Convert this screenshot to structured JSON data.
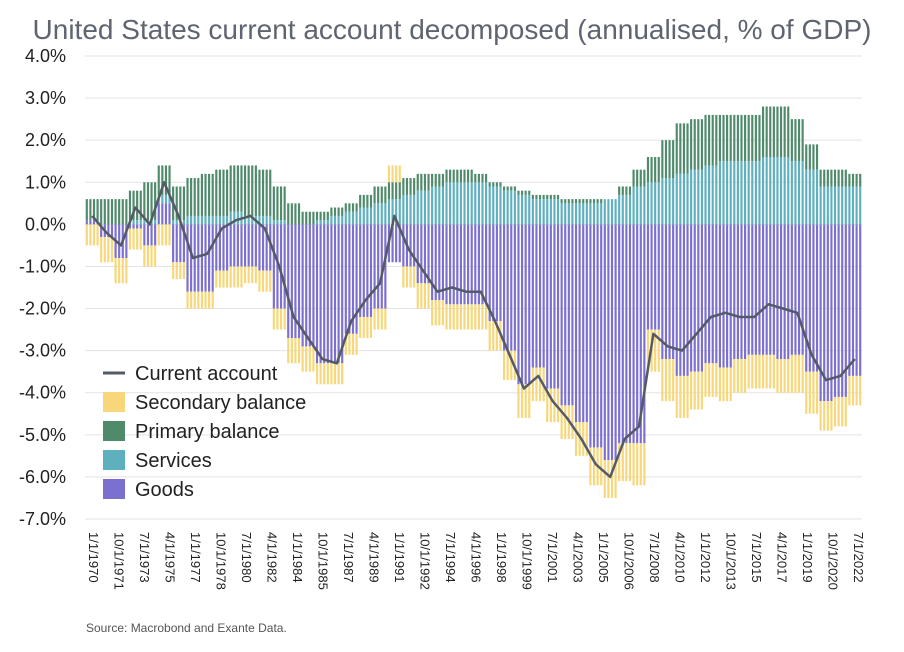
{
  "chart_data": {
    "type": "bar",
    "title": "United States current account decomposed (annualised, % of GDP)",
    "ylim": [
      -7.0,
      4.0
    ],
    "yticks": [
      "4.0%",
      "3.0%",
      "2.0%",
      "1.0%",
      "0.0%",
      "-1.0%",
      "-2.0%",
      "-3.0%",
      "-4.0%",
      "-5.0%",
      "-6.0%",
      "-7.0%"
    ],
    "ytick_values": [
      4,
      3,
      2,
      1,
      0,
      -1,
      -2,
      -3,
      -4,
      -5,
      -6,
      -7
    ],
    "xticks": [
      "1/1/1970",
      "10/1/1971",
      "7/1/1973",
      "4/1/1975",
      "1/1/1977",
      "10/1/1978",
      "7/1/1980",
      "4/1/1982",
      "1/1/1984",
      "10/1/1985",
      "7/1/1987",
      "4/1/1989",
      "1/1/1991",
      "10/1/1992",
      "7/1/1994",
      "4/1/1996",
      "1/1/1998",
      "10/1/1999",
      "7/1/2001",
      "4/1/2003",
      "1/1/2005",
      "10/1/2006",
      "7/1/2008",
      "4/1/2010",
      "1/1/2012",
      "10/1/2013",
      "7/1/2015",
      "4/1/2017",
      "1/1/2019",
      "10/1/2020",
      "7/1/2022"
    ],
    "grid": true,
    "legend_position": "bottom-left",
    "legend": [
      {
        "name": "Current account",
        "type": "line",
        "color": "#555b66"
      },
      {
        "name": "Secondary balance",
        "type": "bar",
        "color": "#f7d77a"
      },
      {
        "name": "Primary balance",
        "type": "bar",
        "color": "#4f8a6a"
      },
      {
        "name": "Services",
        "type": "bar",
        "color": "#5fb0bf"
      },
      {
        "name": "Goods",
        "type": "bar",
        "color": "#7b6fcf"
      }
    ],
    "x": [
      "1970",
      "1971",
      "1972",
      "1973",
      "1974",
      "1975",
      "1976",
      "1977",
      "1978",
      "1979",
      "1980",
      "1981",
      "1982",
      "1983",
      "1984",
      "1985",
      "1986",
      "1987",
      "1988",
      "1989",
      "1990",
      "1991",
      "1992",
      "1993",
      "1994",
      "1995",
      "1996",
      "1997",
      "1998",
      "1999",
      "2000",
      "2001",
      "2002",
      "2003",
      "2004",
      "2005",
      "2006",
      "2007",
      "2008",
      "2009",
      "2010",
      "2011",
      "2012",
      "2013",
      "2014",
      "2015",
      "2016",
      "2017",
      "2018",
      "2019",
      "2020",
      "2021",
      "2022",
      "2023"
    ],
    "series": [
      {
        "name": "Goods",
        "color": "#7b6fcf",
        "values": [
          0.1,
          -0.3,
          -0.8,
          -0.1,
          -0.5,
          0.5,
          -0.9,
          -1.6,
          -1.6,
          -1.1,
          -1.0,
          -1.0,
          -1.1,
          -2.0,
          -2.7,
          -2.9,
          -3.3,
          -3.3,
          -2.6,
          -2.2,
          -2.0,
          -0.9,
          -1.0,
          -1.4,
          -1.8,
          -1.9,
          -1.9,
          -1.9,
          -2.3,
          -3.0,
          -3.8,
          -3.4,
          -3.9,
          -4.3,
          -4.7,
          -5.3,
          -5.6,
          -5.2,
          -5.2,
          -2.5,
          -3.2,
          -3.6,
          -3.5,
          -3.3,
          -3.4,
          -3.2,
          -3.1,
          -3.1,
          -3.2,
          -3.1,
          -3.5,
          -4.2,
          -4.1,
          -3.6
        ]
      },
      {
        "name": "Services",
        "color": "#5fb0bf",
        "values": [
          0.0,
          0.0,
          0.0,
          0.1,
          0.1,
          0.2,
          0.1,
          0.2,
          0.2,
          0.2,
          0.3,
          0.2,
          0.2,
          0.1,
          0.0,
          0.0,
          0.1,
          0.2,
          0.3,
          0.4,
          0.5,
          0.6,
          0.7,
          0.8,
          0.9,
          1.0,
          1.0,
          1.0,
          0.9,
          0.8,
          0.7,
          0.6,
          0.6,
          0.5,
          0.5,
          0.5,
          0.6,
          0.7,
          0.9,
          1.0,
          1.1,
          1.2,
          1.3,
          1.4,
          1.5,
          1.5,
          1.5,
          1.6,
          1.6,
          1.5,
          1.3,
          0.9,
          0.9,
          0.9
        ]
      },
      {
        "name": "Primary balance",
        "color": "#4f8a6a",
        "values": [
          0.5,
          0.6,
          0.6,
          0.7,
          0.9,
          0.7,
          0.8,
          0.9,
          1.0,
          1.1,
          1.1,
          1.2,
          1.1,
          0.8,
          0.5,
          0.3,
          0.2,
          0.2,
          0.2,
          0.3,
          0.4,
          0.4,
          0.4,
          0.4,
          0.3,
          0.3,
          0.3,
          0.2,
          0.1,
          0.1,
          0.1,
          0.1,
          0.1,
          0.1,
          0.1,
          0.1,
          0.0,
          0.2,
          0.4,
          0.6,
          0.9,
          1.2,
          1.2,
          1.2,
          1.1,
          1.1,
          1.1,
          1.2,
          1.2,
          1.0,
          0.6,
          0.4,
          0.4,
          0.3
        ]
      },
      {
        "name": "Secondary balance",
        "color": "#f7d77a",
        "values": [
          -0.5,
          -0.6,
          -0.6,
          -0.5,
          -0.5,
          -0.5,
          -0.4,
          -0.4,
          -0.4,
          -0.4,
          -0.5,
          -0.4,
          -0.5,
          -0.5,
          -0.6,
          -0.6,
          -0.5,
          -0.5,
          -0.5,
          -0.5,
          -0.5,
          0.4,
          -0.5,
          -0.6,
          -0.6,
          -0.6,
          -0.6,
          -0.6,
          -0.7,
          -0.7,
          -0.8,
          -0.8,
          -0.8,
          -0.8,
          -0.8,
          -0.9,
          -0.9,
          -0.9,
          -1.0,
          -1.0,
          -1.0,
          -1.0,
          -0.9,
          -0.8,
          -0.8,
          -0.8,
          -0.8,
          -0.8,
          -0.8,
          -0.9,
          -1.0,
          -0.7,
          -0.7,
          -0.7
        ]
      },
      {
        "name": "Current account",
        "color": "#555b66",
        "type": "line",
        "values": [
          0.2,
          -0.2,
          -0.5,
          0.4,
          0.0,
          1.0,
          0.2,
          -0.8,
          -0.7,
          -0.1,
          0.1,
          0.2,
          -0.1,
          -1.0,
          -2.2,
          -2.7,
          -3.2,
          -3.3,
          -2.3,
          -1.8,
          -1.4,
          0.2,
          -0.6,
          -1.1,
          -1.6,
          -1.5,
          -1.6,
          -1.6,
          -2.3,
          -3.1,
          -3.9,
          -3.6,
          -4.2,
          -4.6,
          -5.1,
          -5.7,
          -6.0,
          -5.1,
          -4.8,
          -2.6,
          -2.9,
          -3.0,
          -2.6,
          -2.2,
          -2.1,
          -2.2,
          -2.2,
          -1.9,
          -2.0,
          -2.1,
          -3.1,
          -3.7,
          -3.6,
          -3.2
        ]
      }
    ],
    "source": "Source: Macrobond and Exante Data."
  }
}
